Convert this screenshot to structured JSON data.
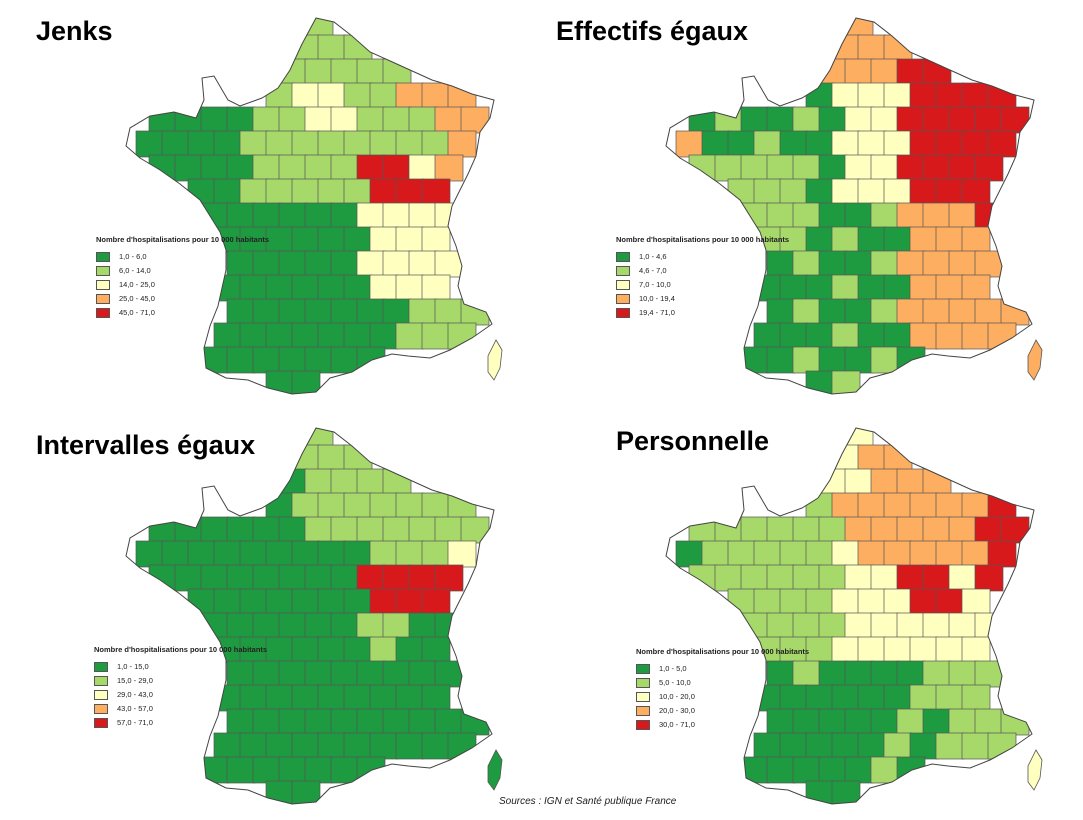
{
  "legend_title": "Nombre d'hospitalisations pour 10 000 habitants",
  "source": "Sources : IGN et Santé publique France",
  "palette": [
    "#1e9a40",
    "#a6d96a",
    "#ffffbf",
    "#fdae61",
    "#d7191c"
  ],
  "maps": [
    {
      "title": "Jenks",
      "legend": [
        "1,0 - 6,0",
        "6,0 - 14,0",
        "14,0 - 25,0",
        "25,0 - 45,0",
        "45,0 - 71,0"
      ]
    },
    {
      "title": "Effectifs égaux",
      "legend": [
        "1,0 - 4,6",
        "4,6 - 7,0",
        "7,0 - 10,0",
        "10,0 - 19,4",
        "19,4 - 71,0"
      ]
    },
    {
      "title": "Intervalles égaux",
      "legend": [
        "1,0 - 15,0",
        "15,0 - 29,0",
        "29,0 - 43,0",
        "43,0 - 57,0",
        "57,0 - 71,0"
      ]
    },
    {
      "title": "Personnelle",
      "legend": [
        "1,0 - 5,0",
        "5,0 - 10,0",
        "10,0 - 20,0",
        "20,0 - 30,0",
        "30,0 - 71,0"
      ]
    }
  ]
}
